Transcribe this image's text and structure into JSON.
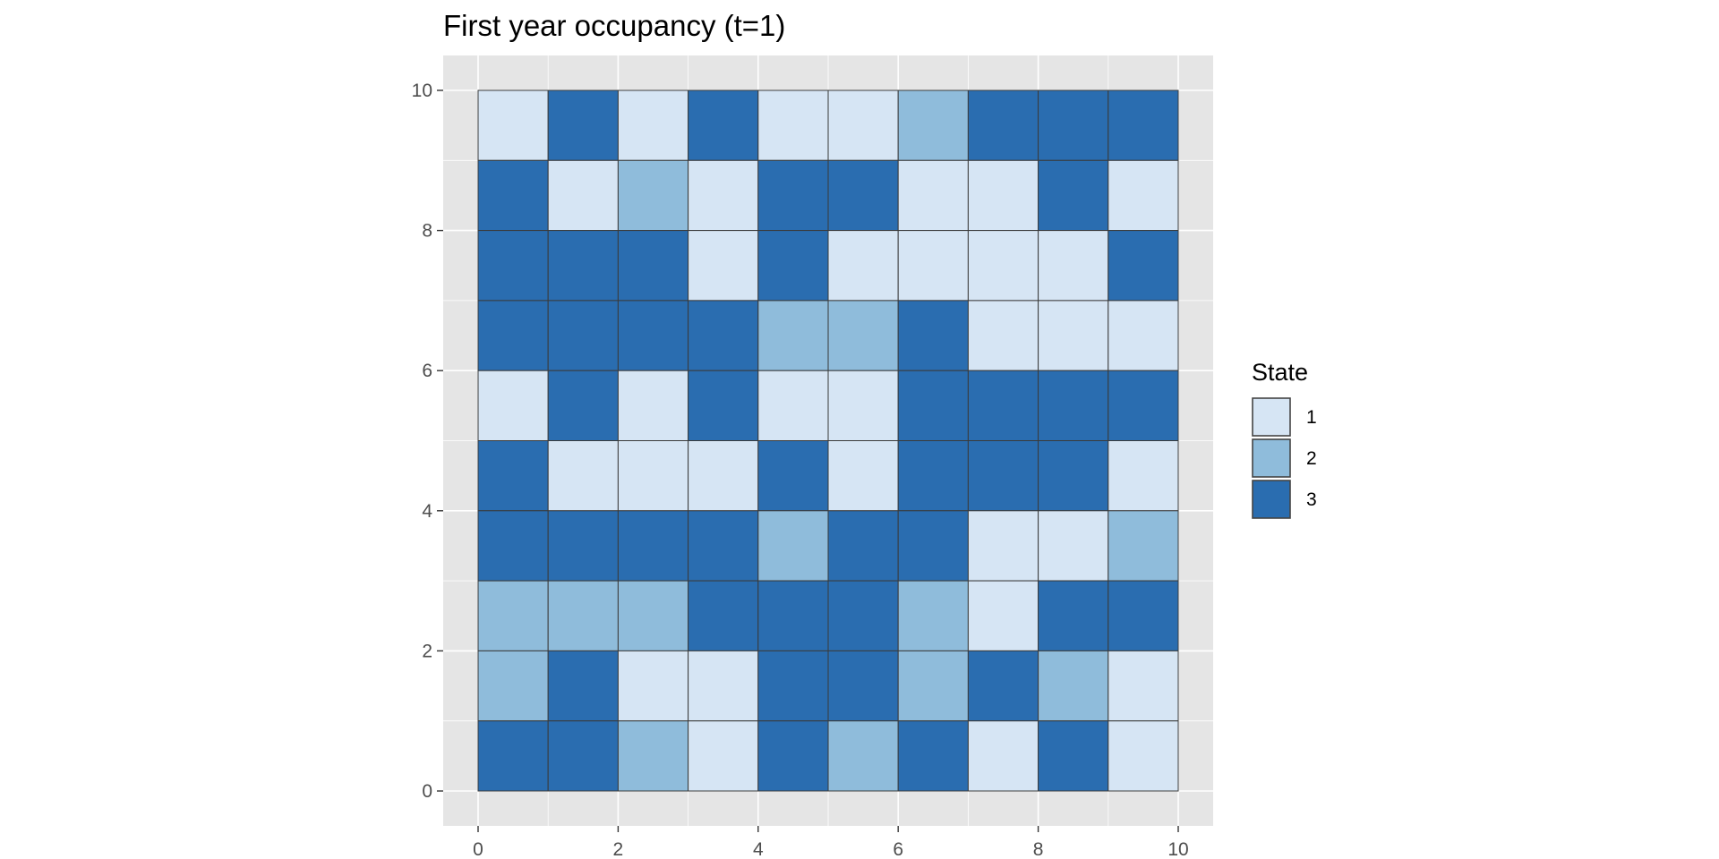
{
  "chart_data": {
    "type": "heatmap",
    "title": "First year occupancy (t=1)",
    "xlabel": "",
    "ylabel": "",
    "xlim": [
      0,
      10
    ],
    "ylim": [
      0,
      10
    ],
    "x_ticks": [
      "0",
      "2",
      "4",
      "6",
      "8",
      "10"
    ],
    "y_ticks": [
      "0",
      "2",
      "4",
      "6",
      "8",
      "10"
    ],
    "grid": true,
    "legend": {
      "title": "State",
      "position": "right",
      "entries": [
        {
          "label": "1",
          "color": "#d6e5f4"
        },
        {
          "label": "2",
          "color": "#8fbcdb"
        },
        {
          "label": "3",
          "color": "#2a6db0"
        }
      ]
    },
    "cell_size": 1,
    "rows_top_to_bottom": [
      [
        1,
        3,
        1,
        3,
        1,
        1,
        2,
        3,
        3,
        3
      ],
      [
        3,
        1,
        2,
        1,
        3,
        3,
        1,
        1,
        3,
        1
      ],
      [
        3,
        3,
        3,
        1,
        3,
        1,
        1,
        1,
        1,
        3
      ],
      [
        3,
        3,
        3,
        3,
        2,
        2,
        3,
        1,
        1,
        1
      ],
      [
        1,
        3,
        1,
        3,
        1,
        1,
        3,
        3,
        3,
        3
      ],
      [
        3,
        1,
        1,
        1,
        3,
        1,
        3,
        3,
        3,
        1
      ],
      [
        3,
        3,
        3,
        3,
        2,
        3,
        3,
        1,
        1,
        2
      ],
      [
        2,
        2,
        2,
        3,
        3,
        3,
        2,
        1,
        3,
        3
      ],
      [
        2,
        3,
        1,
        1,
        3,
        3,
        2,
        3,
        2,
        1
      ],
      [
        3,
        3,
        2,
        1,
        3,
        2,
        3,
        1,
        3,
        1
      ]
    ]
  },
  "colors": {
    "panel_background": "#e5e5e5",
    "grid_line": "#ffffff",
    "tile_border": "#3a3a3a",
    "tick_text": "#4d4d4d"
  }
}
